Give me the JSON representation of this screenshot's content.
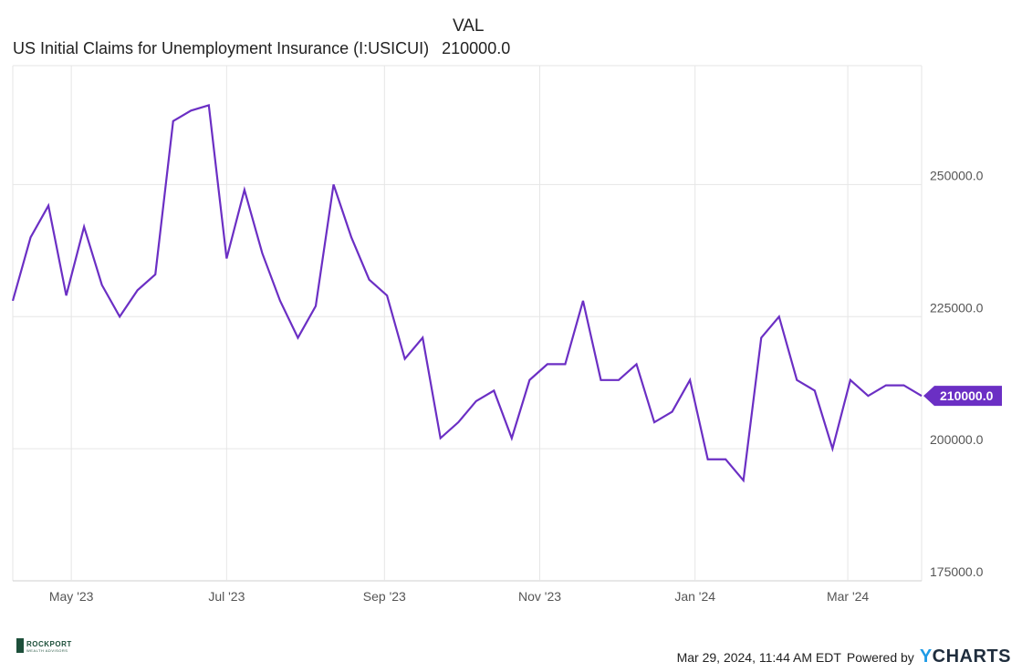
{
  "legend": {
    "header": "VAL",
    "series_name": "US Initial Claims for Unemployment Insurance (I:USICUI)",
    "series_value": "210000.0"
  },
  "footer": {
    "logo_main": "ROCKPORT",
    "logo_sub": "WEALTH ADVISORS",
    "timestamp": "Mar 29, 2024, 11:44 AM EDT",
    "powered_by": "Powered by",
    "brand": "YCHARTS"
  },
  "colors": {
    "line": "#6b2fc4",
    "grid": "#e6e6e6",
    "axis": "#cfcfcf"
  },
  "chart_data": {
    "type": "line",
    "series": [
      {
        "name": "US Initial Claims for Unemployment Insurance (I:USICUI)",
        "values": [
          228000,
          240000,
          246000,
          229000,
          242000,
          231000,
          225000,
          230000,
          233000,
          262000,
          264000,
          265000,
          236000,
          249000,
          237000,
          228000,
          221000,
          227000,
          250000,
          240000,
          232000,
          229000,
          217000,
          221000,
          202000,
          205000,
          209000,
          211000,
          202000,
          213000,
          216000,
          216000,
          228000,
          213000,
          213000,
          216000,
          205000,
          207000,
          213000,
          198000,
          198000,
          194000,
          221000,
          225000,
          213000,
          211000,
          200000,
          213000,
          210000,
          212000,
          212000,
          210000
        ]
      }
    ],
    "x_start": "2023-04-08",
    "x_step_days": 7,
    "xlabels": [
      "May '23",
      "Jul '23",
      "Sep '23",
      "Nov '23",
      "Jan '24",
      "Mar '24"
    ],
    "yticks": [
      "175000.0",
      "200000.0",
      "225000.0",
      "250000.0"
    ],
    "ylim": [
      175000,
      272500
    ],
    "last_value_label": "210000.0",
    "grid": true
  }
}
